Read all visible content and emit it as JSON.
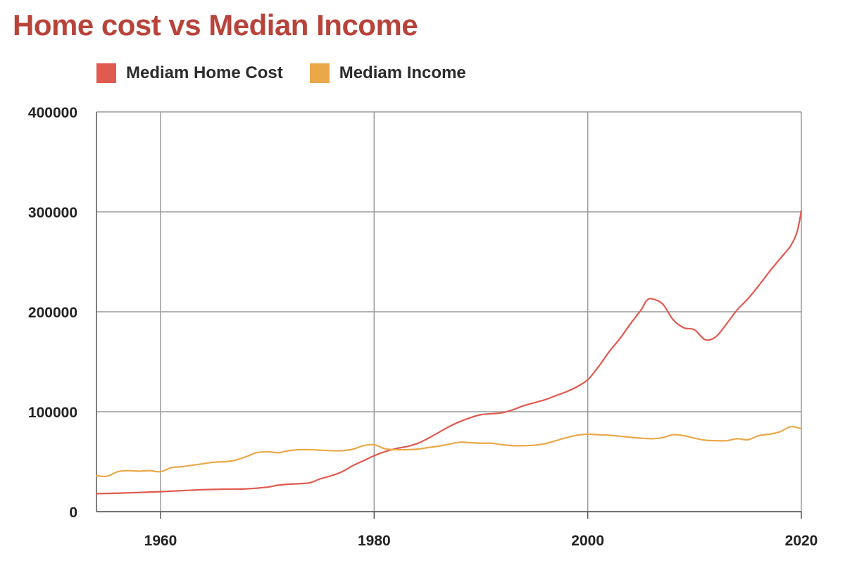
{
  "chart_data": {
    "type": "line",
    "title": "Home cost vs Median Income",
    "xlabel": "",
    "ylabel": "",
    "xlim": [
      1954,
      2020
    ],
    "ylim": [
      0,
      400000
    ],
    "x_ticks": [
      1960,
      1980,
      2000,
      2020
    ],
    "y_ticks": [
      0,
      100000,
      200000,
      300000,
      400000
    ],
    "x_tick_labels": [
      "1960",
      "1980",
      "2000",
      "2020"
    ],
    "y_tick_labels": [
      "0",
      "100000",
      "200000",
      "300000",
      "400000"
    ],
    "grid": true,
    "legend_position": "top-left",
    "series": [
      {
        "name": "Mediam Home Cost",
        "color": "#e05a4f",
        "x": [
          1954,
          1956,
          1958,
          1960,
          1962,
          1964,
          1966,
          1968,
          1970,
          1971,
          1972,
          1973,
          1974,
          1975,
          1976,
          1977,
          1978,
          1979,
          1980,
          1981,
          1982,
          1983,
          1984,
          1985,
          1986,
          1987,
          1988,
          1989,
          1990,
          1991,
          1992,
          1993,
          1994,
          1995,
          1996,
          1997,
          1998,
          1999,
          2000,
          2001,
          2002,
          2003,
          2004,
          2005,
          2005.5,
          2006,
          2007,
          2008,
          2009,
          2010,
          2011,
          2012,
          2013,
          2014,
          2015,
          2016,
          2017,
          2018,
          2019,
          2019.6,
          2020
        ],
        "values": [
          18000,
          18500,
          19200,
          20000,
          21000,
          22000,
          22500,
          22800,
          24500,
          26500,
          27500,
          28000,
          29000,
          33000,
          36000,
          40000,
          46000,
          51000,
          56000,
          60000,
          63000,
          65000,
          68000,
          73000,
          79000,
          85000,
          90000,
          94000,
          97000,
          98000,
          99000,
          102000,
          106000,
          109000,
          112000,
          116000,
          120000,
          125000,
          132000,
          145000,
          160000,
          173000,
          188000,
          202000,
          211000,
          213000,
          208000,
          192000,
          184000,
          182000,
          172000,
          175000,
          188000,
          202000,
          213000,
          226000,
          240000,
          253000,
          266000,
          280000,
          301000
        ]
      },
      {
        "name": "Mediam Income",
        "color": "#eaa848",
        "x": [
          1954,
          1955,
          1956,
          1957,
          1958,
          1959,
          1960,
          1961,
          1962,
          1963,
          1964,
          1965,
          1966,
          1967,
          1968,
          1969,
          1970,
          1971,
          1972,
          1973,
          1974,
          1975,
          1976,
          1977,
          1978,
          1979,
          1980,
          1981,
          1982,
          1983,
          1984,
          1985,
          1986,
          1987,
          1988,
          1989,
          1990,
          1991,
          1992,
          1993,
          1994,
          1995,
          1996,
          1997,
          1998,
          1999,
          2000,
          2001,
          2002,
          2003,
          2004,
          2005,
          2006,
          2007,
          2008,
          2009,
          2010,
          2011,
          2012,
          2013,
          2014,
          2015,
          2016,
          2017,
          2018,
          2019,
          2020
        ],
        "values": [
          36000,
          35500,
          40000,
          41000,
          40500,
          41000,
          40000,
          44000,
          45000,
          46500,
          48000,
          49500,
          50000,
          51500,
          55000,
          59000,
          60000,
          59000,
          61000,
          62000,
          62000,
          61500,
          61000,
          61000,
          62500,
          66000,
          67000,
          63000,
          62000,
          62000,
          62500,
          64000,
          65500,
          67500,
          69500,
          69000,
          68500,
          68500,
          67000,
          66000,
          66000,
          66500,
          68000,
          71000,
          74000,
          76500,
          77500,
          77000,
          76500,
          75500,
          74500,
          73500,
          73000,
          74000,
          77000,
          76000,
          73500,
          71500,
          71000,
          71000,
          73000,
          72000,
          76000,
          77500,
          80000,
          85000,
          83000
        ]
      }
    ]
  }
}
